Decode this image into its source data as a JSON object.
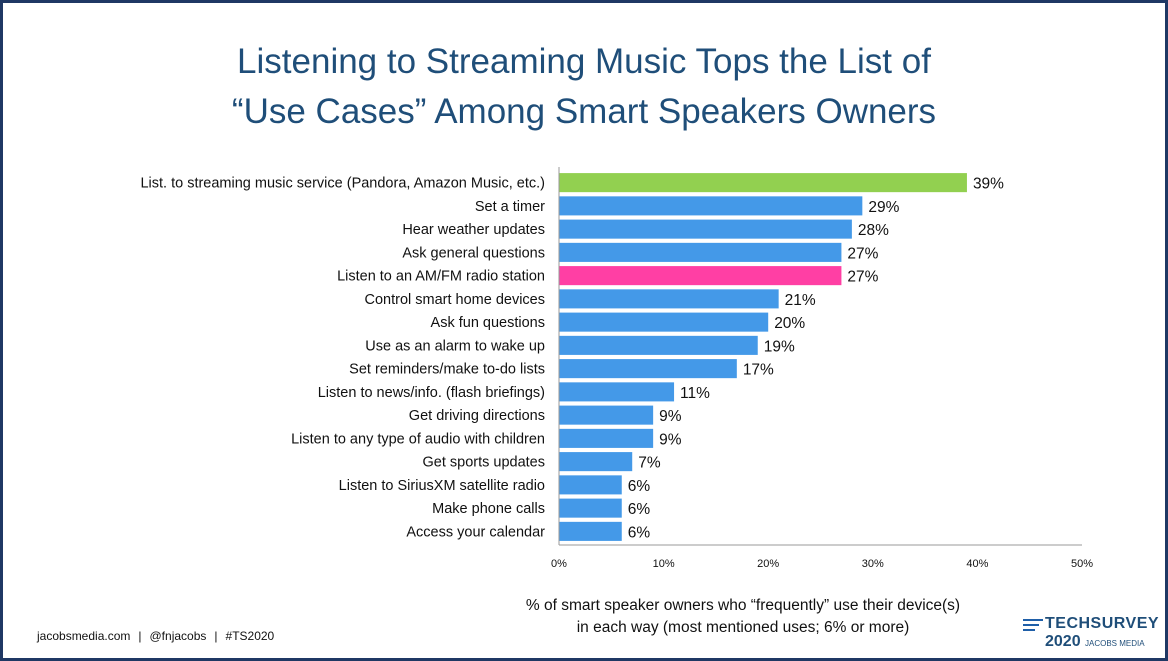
{
  "title_lines": [
    "Listening to Streaming Music Tops the List of",
    "“Use Cases” Among Smart Speakers Owners"
  ],
  "chart_data": {
    "type": "bar",
    "orientation": "horizontal",
    "categories": [
      "List. to streaming music service (Pandora, Amazon Music, etc.)",
      "Set a timer",
      "Hear weather updates",
      "Ask general questions",
      "Listen to an AM/FM radio station",
      "Control smart home devices",
      "Ask fun questions",
      "Use as an alarm to wake up",
      "Set reminders/make to-do lists",
      "Listen to news/info. (flash briefings)",
      "Get driving directions",
      "Listen to any type of audio with children",
      "Get sports updates",
      "Listen to SiriusXM satellite radio",
      "Make phone calls",
      "Access your calendar"
    ],
    "values": [
      39,
      29,
      28,
      27,
      27,
      21,
      20,
      19,
      17,
      11,
      9,
      9,
      7,
      6,
      6,
      6
    ],
    "value_labels": [
      "39%",
      "29%",
      "28%",
      "27%",
      "27%",
      "21%",
      "20%",
      "19%",
      "17%",
      "11%",
      "9%",
      "9%",
      "7%",
      "6%",
      "6%",
      "6%"
    ],
    "bar_colors": [
      "#92d050",
      "#4499e8",
      "#4499e8",
      "#4499e8",
      "#ff3fa4",
      "#4499e8",
      "#4499e8",
      "#4499e8",
      "#4499e8",
      "#4499e8",
      "#4499e8",
      "#4499e8",
      "#4499e8",
      "#4499e8",
      "#4499e8",
      "#4499e8"
    ],
    "xlim": [
      0,
      50
    ],
    "xticks": [
      0,
      10,
      20,
      30,
      40,
      50
    ],
    "xtick_labels": [
      "0%",
      "10%",
      "20%",
      "30%",
      "40%",
      "50%"
    ],
    "xlabel_lines": [
      "% of smart speaker owners who “frequently” use their device(s)",
      "in each way (most mentioned uses; 6% or more)"
    ],
    "grid": false
  },
  "footer": {
    "site": "jacobsmedia.com",
    "handle": "@fnjacobs",
    "hashtag": "#TS2020",
    "separator": "|"
  },
  "logo": {
    "brand": "TECHSURVEY",
    "year": "2020",
    "sub": "JACOBS MEDIA"
  },
  "colors": {
    "title": "#1f4e79",
    "frame": "#1f3864"
  }
}
